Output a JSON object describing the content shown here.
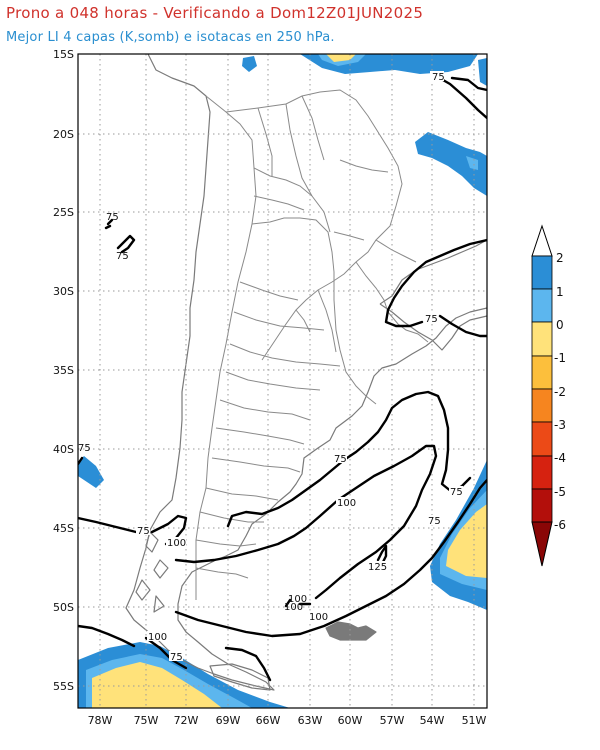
{
  "header": {
    "title": "Prono a 048 horas - Verificando a Dom12Z01JUN2025",
    "subtitle": "Mejor LI 4 capas (K,somb) e isotacas en 250 hPa."
  },
  "axes": {
    "lat_labels": [
      "15S",
      "20S",
      "25S",
      "30S",
      "35S",
      "40S",
      "45S",
      "50S",
      "55S"
    ],
    "lon_labels": [
      "78W",
      "75W",
      "72W",
      "69W",
      "66W",
      "63W",
      "60W",
      "57W",
      "54W",
      "51W"
    ]
  },
  "colorbar": {
    "levels": [
      "2",
      "1",
      "0",
      "-1",
      "-2",
      "-3",
      "-4",
      "-5",
      "-6"
    ],
    "colors": {
      "above_2": "#ffffff",
      "1_to_2": "#2b8ed6",
      "0_to_1": "#5cb6ee",
      "-1_to_0": "#ffe27a",
      "-2_to_-1": "#fcbf3c",
      "-3_to_-2": "#f6851f",
      "-4_to_-3": "#ec4a17",
      "-5_to_-4": "#d62210",
      "-6_to_-5": "#b30f0b",
      "below_-6": "#8a0606"
    }
  },
  "contour_labels": [
    "75",
    "75",
    "75",
    "75",
    "75",
    "75",
    "75",
    "75",
    "75",
    "75",
    "100",
    "100",
    "100",
    "100",
    "100",
    "100",
    "125"
  ],
  "colors": {
    "title": "#d0322c",
    "subtitle": "#2a8fd0",
    "borders": "#7a7a7a",
    "grid": "#9a9a9a",
    "isotach": "#000000"
  }
}
